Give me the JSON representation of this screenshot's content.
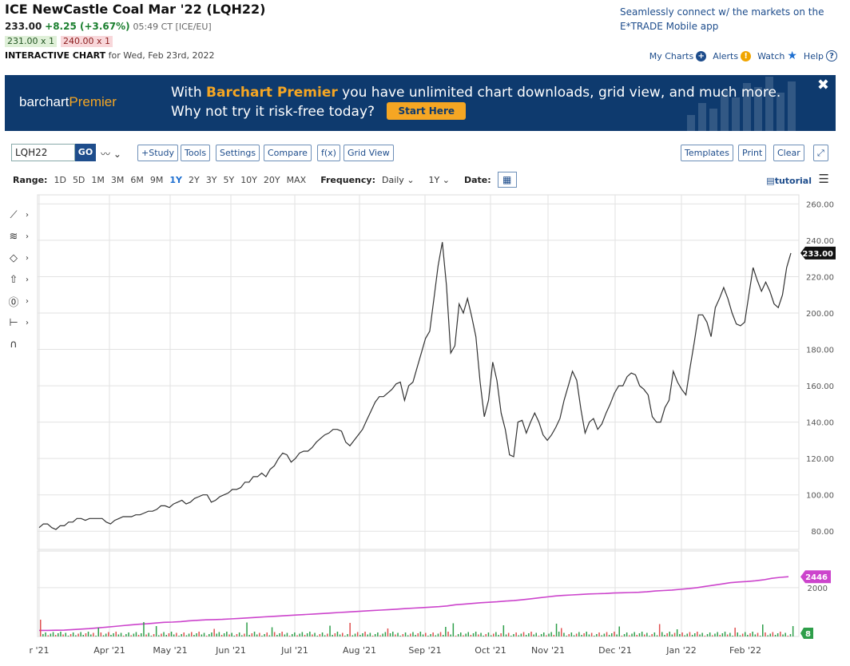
{
  "header": {
    "title": "ICE NewCastle Coal Mar '22 (LQH22)",
    "last": "233.00",
    "change": "+8.25 (+3.67%)",
    "time": "05:49 CT [ICE/EU]",
    "bid": "231.00 x 1",
    "ask": "240.00 x 1",
    "chart_label": "INTERACTIVE CHART",
    "chart_date": "for Wed, Feb 23rd, 2022"
  },
  "promo_top": "Seamlessly connect w/ the markets on the E*TRADE Mobile app",
  "toplinks": {
    "mycharts": "My Charts",
    "alerts": "Alerts",
    "watch": "Watch",
    "help": "Help"
  },
  "banner": {
    "brand_a": "barchart",
    "brand_b": "Premier",
    "text_a": "With ",
    "text_bp": "Barchart Premier",
    "text_b": " you have unlimited chart downloads, grid view, and much more. Why not try it risk-free today?",
    "cta": "Start Here",
    "close": "✖"
  },
  "toolbar": {
    "symbol": "LQH22",
    "go": "GO",
    "study": "+Study",
    "tools": "Tools",
    "settings": "Settings",
    "compare": "Compare",
    "fx": "f(x)",
    "grid": "Grid View",
    "templates": "Templates",
    "print": "Print",
    "clear": "Clear"
  },
  "rangebar": {
    "range_label": "Range:",
    "ranges": [
      "1D",
      "5D",
      "1M",
      "3M",
      "6M",
      "9M",
      "1Y",
      "2Y",
      "3Y",
      "5Y",
      "10Y",
      "20Y",
      "MAX"
    ],
    "active_range": "1Y",
    "freq_label": "Frequency:",
    "freq_value": "Daily",
    "period_value": "1Y",
    "date_label": "Date:",
    "tutorial": "tutorial"
  },
  "chart_data": {
    "type": "line",
    "x_labels": [
      "r '21",
      "Apr '21",
      "May '21",
      "Jun '21",
      "Jul '21",
      "Aug '21",
      "Sep '21",
      "Oct '21",
      "Nov '21",
      "Dec '21",
      "Jan '22",
      "Feb '22"
    ],
    "price_axis": {
      "ylim": [
        70,
        265
      ],
      "ticks": [
        "260.00",
        "240.00",
        "220.00",
        "200.00",
        "180.00",
        "160.00",
        "140.00",
        "120.00",
        "100.00",
        "80.00"
      ],
      "tick_values": [
        260,
        240,
        220,
        200,
        180,
        160,
        140,
        120,
        100,
        80
      ],
      "last_label": "233.00",
      "last_value": 233
    },
    "price_series": {
      "color": "#333333",
      "values": [
        82,
        84,
        84,
        82,
        81,
        83,
        83,
        85,
        85,
        87,
        87,
        86,
        87,
        87,
        87,
        87,
        85,
        84,
        86,
        87,
        88,
        88,
        88,
        89,
        89,
        90,
        91,
        91,
        92,
        94,
        94,
        93,
        95,
        96,
        97,
        95,
        96,
        98,
        99,
        100,
        100,
        96,
        97,
        99,
        100,
        101,
        103,
        103,
        104,
        107,
        107,
        110,
        110,
        112,
        110,
        114,
        116,
        120,
        123,
        122,
        118,
        120,
        123,
        124,
        124,
        126,
        129,
        131,
        133,
        134,
        136,
        136,
        135,
        129,
        127,
        130,
        133,
        136,
        141,
        146,
        151,
        154,
        154,
        156,
        158,
        161,
        162,
        152,
        160,
        162,
        170,
        178,
        186,
        190,
        208,
        226,
        239,
        215,
        178,
        182,
        205,
        200,
        208,
        198,
        187,
        162,
        143,
        152,
        173,
        163,
        145,
        136,
        122,
        121,
        140,
        141,
        134,
        140,
        145,
        140,
        133,
        130,
        133,
        137,
        142,
        152,
        160,
        168,
        163,
        147,
        134,
        140,
        142,
        136,
        139,
        145,
        150,
        156,
        160,
        160,
        165,
        167,
        166,
        160,
        158,
        155,
        143,
        140,
        140,
        148,
        152,
        168,
        162,
        158,
        155,
        170,
        184,
        199,
        199,
        195,
        187,
        203,
        208,
        214,
        208,
        200,
        194,
        193,
        195,
        210,
        225,
        218,
        212,
        217,
        212,
        205,
        203,
        210,
        225,
        233
      ]
    },
    "volume_axis": {
      "tick": "2000",
      "tick_value": 2000,
      "ylim": [
        0,
        3500
      ],
      "last_label": "2446",
      "last_value": 2446
    },
    "volume_series": {
      "color": "#cc44cc",
      "values": [
        250,
        248,
        255,
        260,
        280,
        300,
        320,
        350,
        380,
        410,
        440,
        470,
        500,
        520,
        550,
        580,
        590,
        610,
        640,
        660,
        680,
        690,
        700,
        720,
        740,
        760,
        780,
        800,
        820,
        840,
        860,
        880,
        900,
        920,
        940,
        960,
        980,
        1000,
        1020,
        1040,
        1060,
        1080,
        1100,
        1120,
        1140,
        1160,
        1180,
        1200,
        1220,
        1250,
        1300,
        1320,
        1350,
        1380,
        1400,
        1420,
        1450,
        1470,
        1500,
        1540,
        1580,
        1620,
        1660,
        1680,
        1700,
        1720,
        1740,
        1750,
        1760,
        1780,
        1790,
        1800,
        1810,
        1830,
        1860,
        1880,
        1900,
        1930,
        1960,
        2000,
        2050,
        2100,
        2150,
        2200,
        2230,
        2250,
        2280,
        2320,
        2380,
        2420,
        2446
      ]
    },
    "daily_volume_label": "8",
    "daily_volume_value": 8
  }
}
